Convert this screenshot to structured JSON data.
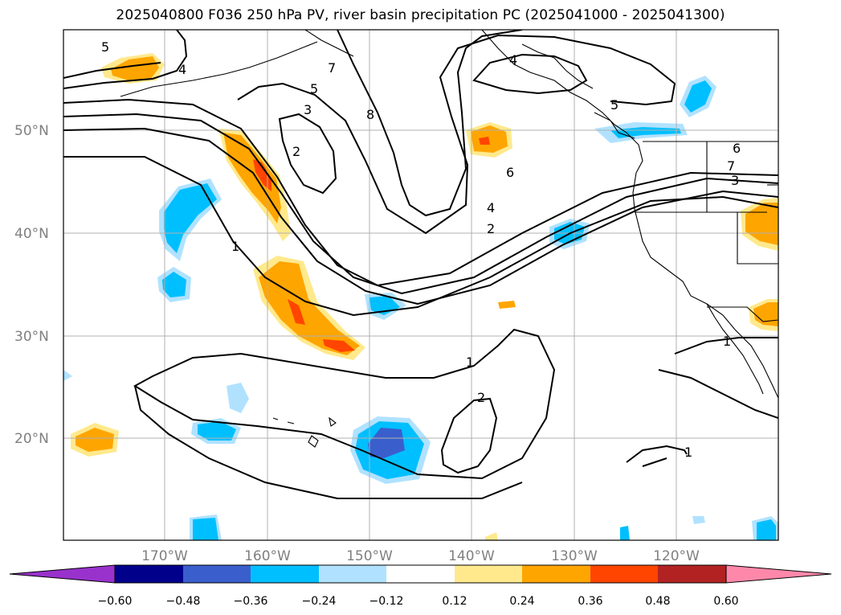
{
  "title": "2025040800 F036 250 hPa PV, river basin precipitation PC (2025041000 - 2025041300)",
  "lat_labels": [
    "50°N",
    "40°N",
    "30°N",
    "20°N"
  ],
  "lon_labels": [
    "170°W",
    "160°W",
    "150°W",
    "140°W",
    "130°W",
    "120°W"
  ],
  "contour_labels": [
    "5",
    "4",
    "5",
    "7",
    "3",
    "8",
    "2",
    "1",
    "4",
    "5",
    "6",
    "4",
    "2",
    "6",
    "7",
    "3",
    "1",
    "1",
    "2",
    "1"
  ],
  "colorbar": {
    "tick_labels": [
      "−0.60",
      "−0.48",
      "−0.36",
      "−0.24",
      "−0.12",
      "0.12",
      "0.24",
      "0.36",
      "0.48",
      "0.60"
    ],
    "colors": [
      "#9932cc",
      "#00008b",
      "#3a5fcd",
      "#00bfff",
      "#b0e2ff",
      "#ffffff",
      "#ffe98c",
      "#ffa500",
      "#ff4500",
      "#b22222",
      "#ff88aa"
    ]
  },
  "colors": {
    "pos_light": "#ffe98c",
    "pos_mid": "#ffa500",
    "pos_high": "#ff4500",
    "neg_light": "#b0e2ff",
    "neg_mid": "#00bfff",
    "neg_high": "#3a5fcd",
    "grid": "#b0b0b0",
    "contour": "#000000"
  }
}
